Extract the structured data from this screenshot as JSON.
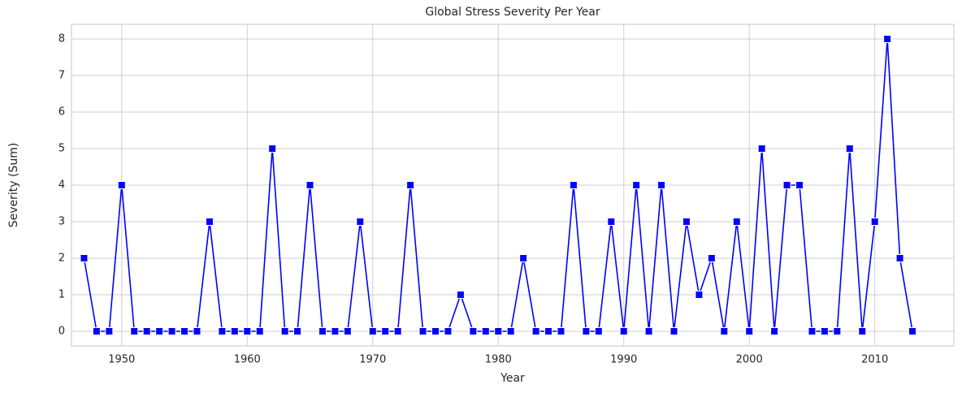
{
  "chart_data": {
    "type": "line",
    "title": "Global Stress Severity Per Year",
    "x_label": "Year",
    "y_label": "Severity (Sum)",
    "x": [
      1947,
      1948,
      1949,
      1950,
      1951,
      1952,
      1953,
      1954,
      1955,
      1956,
      1957,
      1958,
      1959,
      1960,
      1961,
      1962,
      1963,
      1964,
      1965,
      1966,
      1967,
      1968,
      1969,
      1970,
      1971,
      1972,
      1973,
      1974,
      1975,
      1976,
      1977,
      1978,
      1979,
      1980,
      1981,
      1982,
      1983,
      1984,
      1985,
      1986,
      1987,
      1988,
      1989,
      1990,
      1991,
      1992,
      1993,
      1994,
      1995,
      1996,
      1997,
      1998,
      1999,
      2000,
      2001,
      2002,
      2003,
      2004,
      2005,
      2006,
      2007,
      2008,
      2009,
      2010,
      2011,
      2012,
      2013
    ],
    "values": [
      2,
      0,
      0,
      4,
      0,
      0,
      0,
      0,
      0,
      0,
      3,
      0,
      0,
      0,
      0,
      5,
      0,
      0,
      4,
      0,
      0,
      0,
      3,
      0,
      0,
      0,
      4,
      0,
      0,
      0,
      1,
      0,
      0,
      0,
      0,
      2,
      0,
      0,
      0,
      4,
      0,
      0,
      3,
      0,
      4,
      0,
      4,
      0,
      3,
      1,
      2,
      0,
      3,
      0,
      5,
      0,
      4,
      4,
      0,
      0,
      0,
      5,
      0,
      3,
      8,
      2,
      0
    ],
    "color": "#0000ff",
    "marker": "square",
    "xlim": [
      1946,
      2016.3
    ],
    "xticks": [
      1950,
      1960,
      1970,
      1980,
      1990,
      2000,
      2010
    ],
    "ylim": [
      -0.4,
      8.4
    ],
    "yticks": [
      0,
      1,
      2,
      3,
      4,
      5,
      6,
      7,
      8
    ],
    "grid": true
  }
}
